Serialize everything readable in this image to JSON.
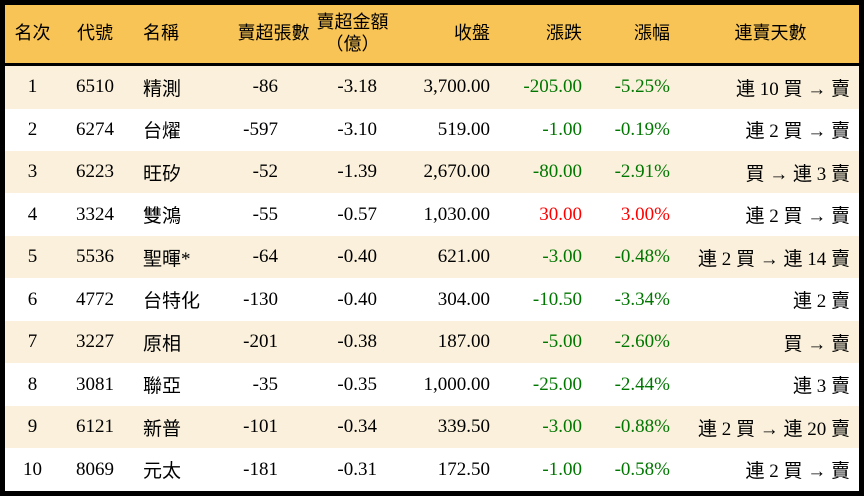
{
  "colors": {
    "header_bg": "#F8C455",
    "row_alt_bg": "#FAF0DB",
    "down_green": "#007700",
    "up_red": "#FF0000",
    "border_black": "#000000"
  },
  "chart_data": {
    "type": "table",
    "columns": [
      {
        "key": "rank",
        "header": "名次"
      },
      {
        "key": "code",
        "header": "代號"
      },
      {
        "key": "name",
        "header": "名稱"
      },
      {
        "key": "net_sell_lots",
        "header": "賣超張數"
      },
      {
        "key": "net_sell_amount",
        "header": "賣超金額\n（億）"
      },
      {
        "key": "close",
        "header": "收盤"
      },
      {
        "key": "change",
        "header": "漲跌"
      },
      {
        "key": "change_pct",
        "header": "漲幅"
      },
      {
        "key": "streak",
        "header": "連賣天數"
      }
    ],
    "rows": [
      {
        "rank": "1",
        "code": "6510",
        "name": "精測",
        "net_sell_lots": "-86",
        "net_sell_amount": "-3.18",
        "close": "3,700.00",
        "change": "-205.00",
        "change_pct": "-5.25%",
        "streak": "連 10 買 → 賣",
        "direction": "down"
      },
      {
        "rank": "2",
        "code": "6274",
        "name": "台燿",
        "net_sell_lots": "-597",
        "net_sell_amount": "-3.10",
        "close": "519.00",
        "change": "-1.00",
        "change_pct": "-0.19%",
        "streak": "連 2 買 → 賣",
        "direction": "down"
      },
      {
        "rank": "3",
        "code": "6223",
        "name": "旺矽",
        "net_sell_lots": "-52",
        "net_sell_amount": "-1.39",
        "close": "2,670.00",
        "change": "-80.00",
        "change_pct": "-2.91%",
        "streak": "買 → 連 3 賣",
        "direction": "down"
      },
      {
        "rank": "4",
        "code": "3324",
        "name": "雙鴻",
        "net_sell_lots": "-55",
        "net_sell_amount": "-0.57",
        "close": "1,030.00",
        "change": "30.00",
        "change_pct": "3.00%",
        "streak": "連 2 買 → 賣",
        "direction": "up"
      },
      {
        "rank": "5",
        "code": "5536",
        "name": "聖暉*",
        "net_sell_lots": "-64",
        "net_sell_amount": "-0.40",
        "close": "621.00",
        "change": "-3.00",
        "change_pct": "-0.48%",
        "streak": "連 2 買 → 連 14 賣",
        "direction": "down"
      },
      {
        "rank": "6",
        "code": "4772",
        "name": "台特化",
        "net_sell_lots": "-130",
        "net_sell_amount": "-0.40",
        "close": "304.00",
        "change": "-10.50",
        "change_pct": "-3.34%",
        "streak": "連 2 賣",
        "direction": "down"
      },
      {
        "rank": "7",
        "code": "3227",
        "name": "原相",
        "net_sell_lots": "-201",
        "net_sell_amount": "-0.38",
        "close": "187.00",
        "change": "-5.00",
        "change_pct": "-2.60%",
        "streak": "買 → 賣",
        "direction": "down"
      },
      {
        "rank": "8",
        "code": "3081",
        "name": "聯亞",
        "net_sell_lots": "-35",
        "net_sell_amount": "-0.35",
        "close": "1,000.00",
        "change": "-25.00",
        "change_pct": "-2.44%",
        "streak": "連 3 賣",
        "direction": "down"
      },
      {
        "rank": "9",
        "code": "6121",
        "name": "新普",
        "net_sell_lots": "-101",
        "net_sell_amount": "-0.34",
        "close": "339.50",
        "change": "-3.00",
        "change_pct": "-0.88%",
        "streak": "連 2 買 → 連 20 賣",
        "direction": "down"
      },
      {
        "rank": "10",
        "code": "8069",
        "name": "元太",
        "net_sell_lots": "-181",
        "net_sell_amount": "-0.31",
        "close": "172.50",
        "change": "-1.00",
        "change_pct": "-0.58%",
        "streak": "連 2 買 → 賣",
        "direction": "down"
      }
    ]
  }
}
